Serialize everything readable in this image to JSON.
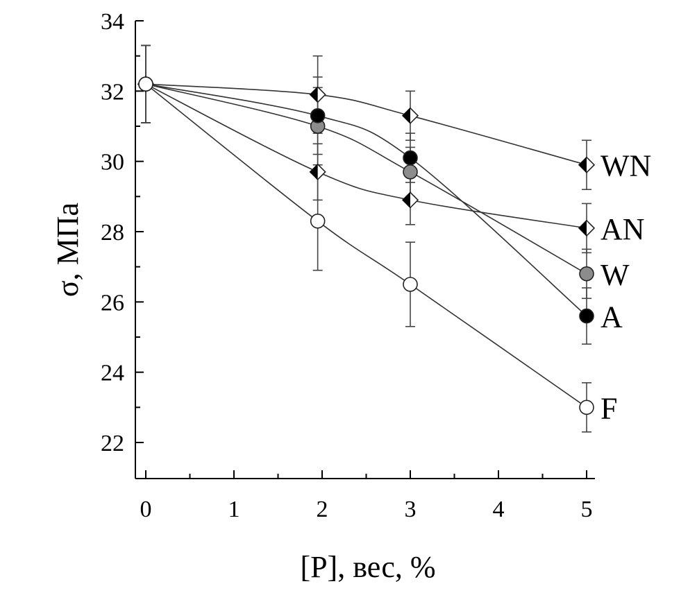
{
  "chart_data": {
    "type": "line",
    "title": "",
    "xlabel": "[P], вес, %",
    "ylabel": "σ, МПа",
    "xlim": [
      0,
      5
    ],
    "ylim": [
      21.1,
      34
    ],
    "x_ticks": [
      "0",
      "1",
      "2",
      "3",
      "4",
      "5"
    ],
    "y_ticks": [
      "22",
      "24",
      "26",
      "28",
      "30",
      "32",
      "34"
    ],
    "grid": false,
    "legend": "inline labels at line ends",
    "x": [
      0,
      1.95,
      3,
      5
    ],
    "series": [
      {
        "name": "WN",
        "marker": "diamond-half",
        "fill": "#000000",
        "values": [
          32.2,
          31.9,
          31.3,
          29.9
        ],
        "errors": [
          1.1,
          1.1,
          0.7,
          0.7
        ]
      },
      {
        "name": "AN",
        "marker": "diamond-half",
        "fill": "#000000",
        "values": [
          32.2,
          29.7,
          28.9,
          28.1
        ],
        "errors": [
          1.1,
          0.8,
          0.7,
          0.7
        ]
      },
      {
        "name": "W",
        "marker": "circle",
        "fill": "#8c8c8c",
        "values": [
          32.2,
          31.0,
          29.7,
          26.8
        ],
        "errors": [
          1.1,
          1.1,
          0.7,
          0.7
        ]
      },
      {
        "name": "A",
        "marker": "circle",
        "fill": "#000000",
        "values": [
          32.2,
          31.3,
          30.1,
          25.6
        ],
        "errors": [
          1.1,
          1.1,
          0.7,
          0.8
        ]
      },
      {
        "name": "F",
        "marker": "circle",
        "fill": "#ffffff",
        "values": [
          32.2,
          28.3,
          26.5,
          23.0
        ],
        "errors": [
          1.1,
          1.4,
          1.2,
          0.7
        ]
      }
    ]
  }
}
